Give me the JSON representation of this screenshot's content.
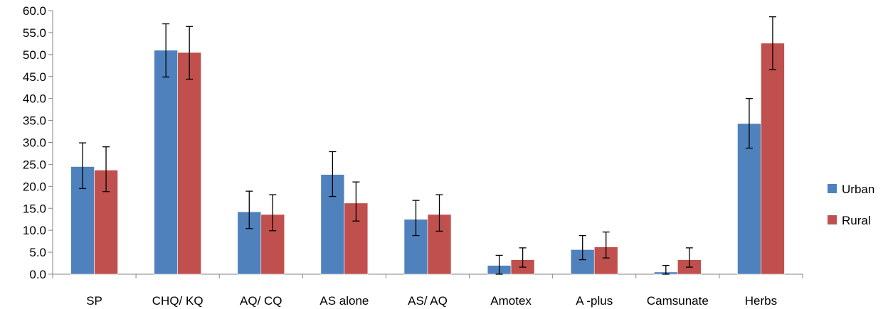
{
  "chart_data": {
    "type": "bar",
    "categories": [
      "SP",
      "CHQ/ KQ",
      "AQ/ CQ",
      "AS alone",
      "AS/ AQ",
      "Amotex",
      "A -plus",
      "Camsunate",
      "Herbs"
    ],
    "series": [
      {
        "name": "Urban",
        "color": "#4F81BD",
        "values": [
          24.5,
          51.0,
          14.2,
          22.7,
          12.5,
          2.0,
          5.6,
          0.5,
          34.3
        ],
        "error_low": [
          19.5,
          44.9,
          10.4,
          17.7,
          8.8,
          0.0,
          3.3,
          0.0,
          28.7
        ],
        "error_high": [
          29.9,
          57.0,
          18.9,
          27.9,
          16.8,
          4.3,
          8.8,
          2.0,
          40.0
        ]
      },
      {
        "name": "Rural",
        "color": "#C0504D",
        "values": [
          23.7,
          50.5,
          13.6,
          16.2,
          13.6,
          3.3,
          6.2,
          3.3,
          52.6
        ],
        "error_low": [
          18.8,
          44.4,
          9.9,
          12.1,
          9.8,
          1.6,
          3.7,
          1.6,
          46.6
        ],
        "error_high": [
          29.0,
          56.4,
          18.1,
          21.0,
          18.1,
          6.0,
          9.6,
          6.0,
          58.6
        ]
      }
    ],
    "yticks": [
      "0.0",
      "5.0",
      "10.0",
      "15.0",
      "20.0",
      "25.0",
      "30.0",
      "35.0",
      "40.0",
      "45.0",
      "50.0",
      "55.0",
      "60.0"
    ],
    "ylim": [
      0,
      60
    ],
    "grid": false,
    "legend_position": "right"
  }
}
